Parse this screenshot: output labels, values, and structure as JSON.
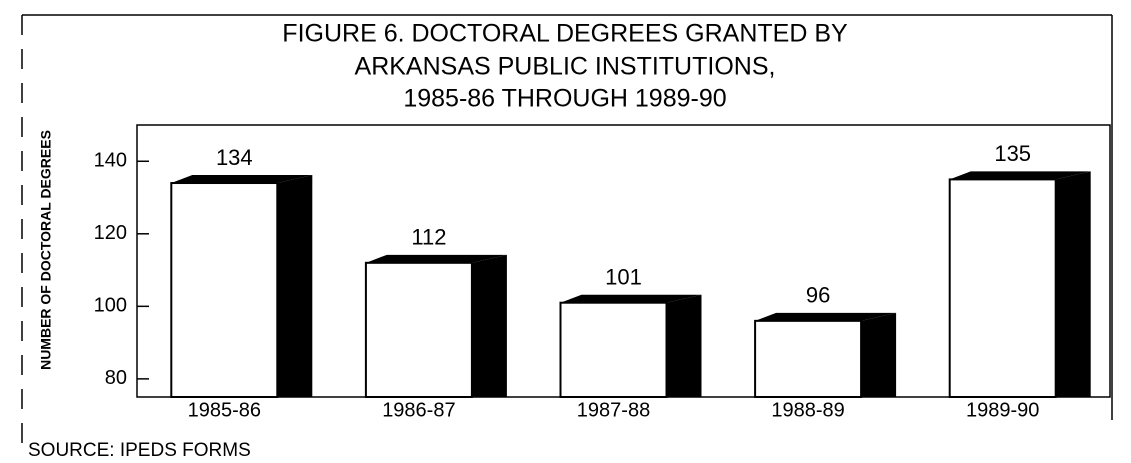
{
  "chart_data": {
    "type": "bar3d",
    "title": [
      "FIGURE 6.  DOCTORAL DEGREES GRANTED BY",
      "ARKANSAS PUBLIC INSTITUTIONS,",
      "1985-86 THROUGH 1989-90"
    ],
    "y_label": "NUMBER OF DOCTORAL DEGREES",
    "categories": [
      "1985-86",
      "1986-87",
      "1987-88",
      "1988-89",
      "1989-90"
    ],
    "values": [
      134,
      112,
      101,
      96,
      135
    ],
    "color": "#ffffff",
    "side_color": "#000000",
    "ylim": [
      75,
      150
    ],
    "yticks": [
      80,
      100,
      120,
      140
    ],
    "source": "SOURCE:  IPEDS FORMS"
  }
}
